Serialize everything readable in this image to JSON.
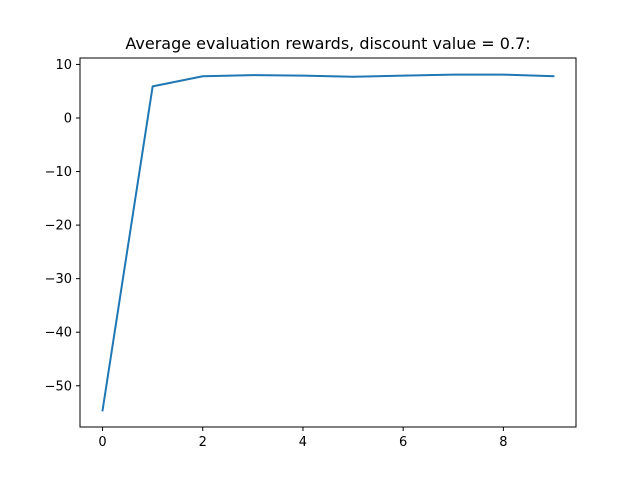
{
  "chart_data": {
    "type": "line",
    "title": "Average evaluation rewards, discount value = 0.7:",
    "xlabel": "",
    "ylabel": "",
    "x": [
      0,
      1,
      2,
      3,
      4,
      5,
      6,
      7,
      8,
      9
    ],
    "series": [
      {
        "values": [
          -54.6,
          5.9,
          7.8,
          8.0,
          7.9,
          7.7,
          7.9,
          8.1,
          8.1,
          7.8
        ],
        "color": "#1f77b4"
      }
    ],
    "xlim": [
      -0.45,
      9.45
    ],
    "ylim": [
      -57.7,
      11.2
    ],
    "xticks": [
      0,
      2,
      4,
      6,
      8
    ],
    "yticks": [
      10,
      0,
      -10,
      -20,
      -30,
      -40,
      -50
    ],
    "xtick_labels": [
      "0",
      "2",
      "4",
      "6",
      "8"
    ],
    "ytick_labels": [
      "10",
      "0",
      "−10",
      "−20",
      "−30",
      "−40",
      "−50"
    ],
    "grid": false,
    "legend": "none"
  }
}
